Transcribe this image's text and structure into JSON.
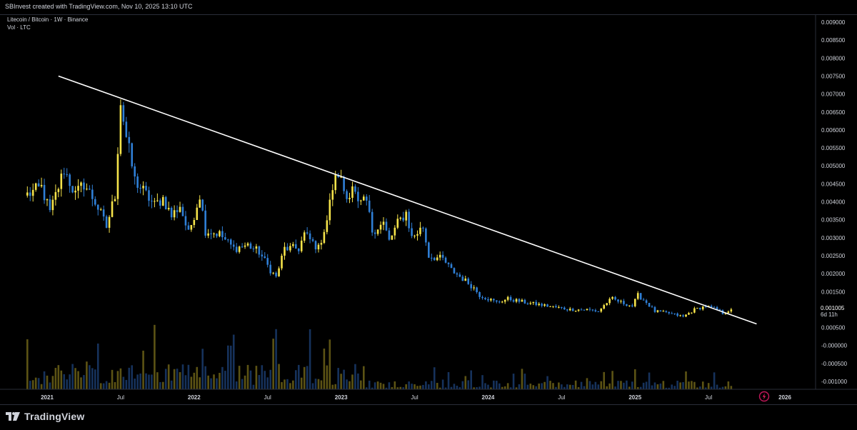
{
  "header": {
    "text": "SBInvest created with TradingView.com, Nov 10, 2025 13:10 UTC"
  },
  "legend": {
    "symbol_line": "Litecoin / Bitcoin · 1W · Binance",
    "volume_line": "Vol · LTC"
  },
  "footer": {
    "brand": "TradingView"
  },
  "colors": {
    "background": "#000000",
    "up_candle": "#f5e34a",
    "down_candle": "#2f7fd6",
    "up_volume": "#5c5314",
    "down_volume": "#16325c",
    "trendline": "#ffffff",
    "axis_text": "#d1d4dc",
    "price_label_bg": "#ffffff",
    "price_label_text": "#000000"
  },
  "chart_data": {
    "type": "candlestick",
    "title": "Litecoin / Bitcoin · 1W · Binance",
    "y_range": [
      -0.001,
      0.0096
    ],
    "y_ticks": [
      {
        "value": 0.009,
        "label": "0.009000"
      },
      {
        "value": 0.0085,
        "label": "0.008500"
      },
      {
        "value": 0.008,
        "label": "0.008000"
      },
      {
        "value": 0.0075,
        "label": "0.007500"
      },
      {
        "value": 0.007,
        "label": "0.007000"
      },
      {
        "value": 0.0065,
        "label": "0.006500"
      },
      {
        "value": 0.006,
        "label": "0.006000"
      },
      {
        "value": 0.0055,
        "label": "0.005500"
      },
      {
        "value": 0.005,
        "label": "0.005000"
      },
      {
        "value": 0.0045,
        "label": "0.004500"
      },
      {
        "value": 0.004,
        "label": "0.004000"
      },
      {
        "value": 0.0035,
        "label": "0.003500"
      },
      {
        "value": 0.003,
        "label": "0.003000"
      },
      {
        "value": 0.0025,
        "label": "0.002500"
      },
      {
        "value": 0.002,
        "label": "0.002000"
      },
      {
        "value": 0.0015,
        "label": "0.001500"
      },
      {
        "value": 0.0005,
        "label": "0.000500"
      },
      {
        "value": 0.0,
        "label": "-0.000000"
      },
      {
        "value": -0.0005,
        "label": "-0.000500"
      },
      {
        "value": -0.001,
        "label": "-0.001000"
      }
    ],
    "x_ticks": [
      "2021",
      "Jul",
      "2022",
      "Jul",
      "2023",
      "Jul",
      "2024",
      "Jul",
      "2025",
      "Jul",
      "2026"
    ],
    "x_tick_positions_in_weeks": [
      0,
      26,
      52,
      78,
      104,
      130,
      156,
      182,
      208,
      234,
      261
    ],
    "weeks_before_first_tick": 7,
    "current_price": {
      "value": 0.001005,
      "label": "0.001005",
      "countdown": "6d 11h"
    },
    "volume_label": "Vol · LTC",
    "anchors": [
      {
        "w": 0,
        "c": 0.0042
      },
      {
        "w": 5,
        "c": 0.0044
      },
      {
        "w": 8,
        "c": 0.0037
      },
      {
        "w": 13,
        "c": 0.0049
      },
      {
        "w": 17,
        "c": 0.0042
      },
      {
        "w": 20,
        "c": 0.0045
      },
      {
        "w": 24,
        "c": 0.004
      },
      {
        "w": 28,
        "c": 0.0033
      },
      {
        "w": 31,
        "c": 0.0042
      },
      {
        "w": 33,
        "c": 0.0068
      },
      {
        "w": 35,
        "c": 0.0058
      },
      {
        "w": 38,
        "c": 0.0046
      },
      {
        "w": 41,
        "c": 0.0043
      },
      {
        "w": 45,
        "c": 0.0039
      },
      {
        "w": 48,
        "c": 0.0041
      },
      {
        "w": 51,
        "c": 0.0036
      },
      {
        "w": 54,
        "c": 0.0039
      },
      {
        "w": 57,
        "c": 0.0031
      },
      {
        "w": 61,
        "c": 0.0042
      },
      {
        "w": 63,
        "c": 0.0032
      },
      {
        "w": 68,
        "c": 0.0031
      },
      {
        "w": 73,
        "c": 0.0027
      },
      {
        "w": 78,
        "c": 0.0028
      },
      {
        "w": 82,
        "c": 0.0026
      },
      {
        "w": 86,
        "c": 0.0021
      },
      {
        "w": 88,
        "c": 0.0019
      },
      {
        "w": 91,
        "c": 0.0027
      },
      {
        "w": 96,
        "c": 0.0027
      },
      {
        "w": 98,
        "c": 0.0031
      },
      {
        "w": 103,
        "c": 0.0027
      },
      {
        "w": 106,
        "c": 0.0035
      },
      {
        "w": 108,
        "c": 0.0044
      },
      {
        "w": 110,
        "c": 0.0048
      },
      {
        "w": 113,
        "c": 0.0041
      },
      {
        "w": 115,
        "c": 0.0045
      },
      {
        "w": 117,
        "c": 0.0039
      },
      {
        "w": 120,
        "c": 0.004
      },
      {
        "w": 122,
        "c": 0.0032
      },
      {
        "w": 126,
        "c": 0.0034
      },
      {
        "w": 128,
        "c": 0.0029
      },
      {
        "w": 131,
        "c": 0.0034
      },
      {
        "w": 134,
        "c": 0.0037
      },
      {
        "w": 136,
        "c": 0.003
      },
      {
        "w": 140,
        "c": 0.0033
      },
      {
        "w": 142,
        "c": 0.0025
      },
      {
        "w": 147,
        "c": 0.0024
      },
      {
        "w": 150,
        "c": 0.0021
      },
      {
        "w": 155,
        "c": 0.0018
      },
      {
        "w": 158,
        "c": 0.0016
      },
      {
        "w": 160,
        "c": 0.0014
      },
      {
        "w": 166,
        "c": 0.0012
      },
      {
        "w": 170,
        "c": 0.0013
      },
      {
        "w": 176,
        "c": 0.0012
      },
      {
        "w": 184,
        "c": 0.0011
      },
      {
        "w": 192,
        "c": 0.001
      },
      {
        "w": 198,
        "c": 0.001
      },
      {
        "w": 202,
        "c": 0.00095
      },
      {
        "w": 205,
        "c": 0.0012
      },
      {
        "w": 207,
        "c": 0.0013
      },
      {
        "w": 210,
        "c": 0.0012
      },
      {
        "w": 214,
        "c": 0.0011
      },
      {
        "w": 216,
        "c": 0.0014
      },
      {
        "w": 219,
        "c": 0.0012
      },
      {
        "w": 222,
        "c": 0.00095
      },
      {
        "w": 227,
        "c": 0.0009
      },
      {
        "w": 232,
        "c": 0.0008
      },
      {
        "w": 236,
        "c": 0.001
      },
      {
        "w": 240,
        "c": 0.0011
      },
      {
        "w": 244,
        "c": 0.001
      },
      {
        "w": 246,
        "c": 0.0009
      },
      {
        "w": 249,
        "c": 0.001005
      }
    ],
    "trendline": {
      "start": {
        "w": 11,
        "v": 0.0075
      },
      "end": {
        "w": 258,
        "v": 0.0006
      }
    }
  }
}
